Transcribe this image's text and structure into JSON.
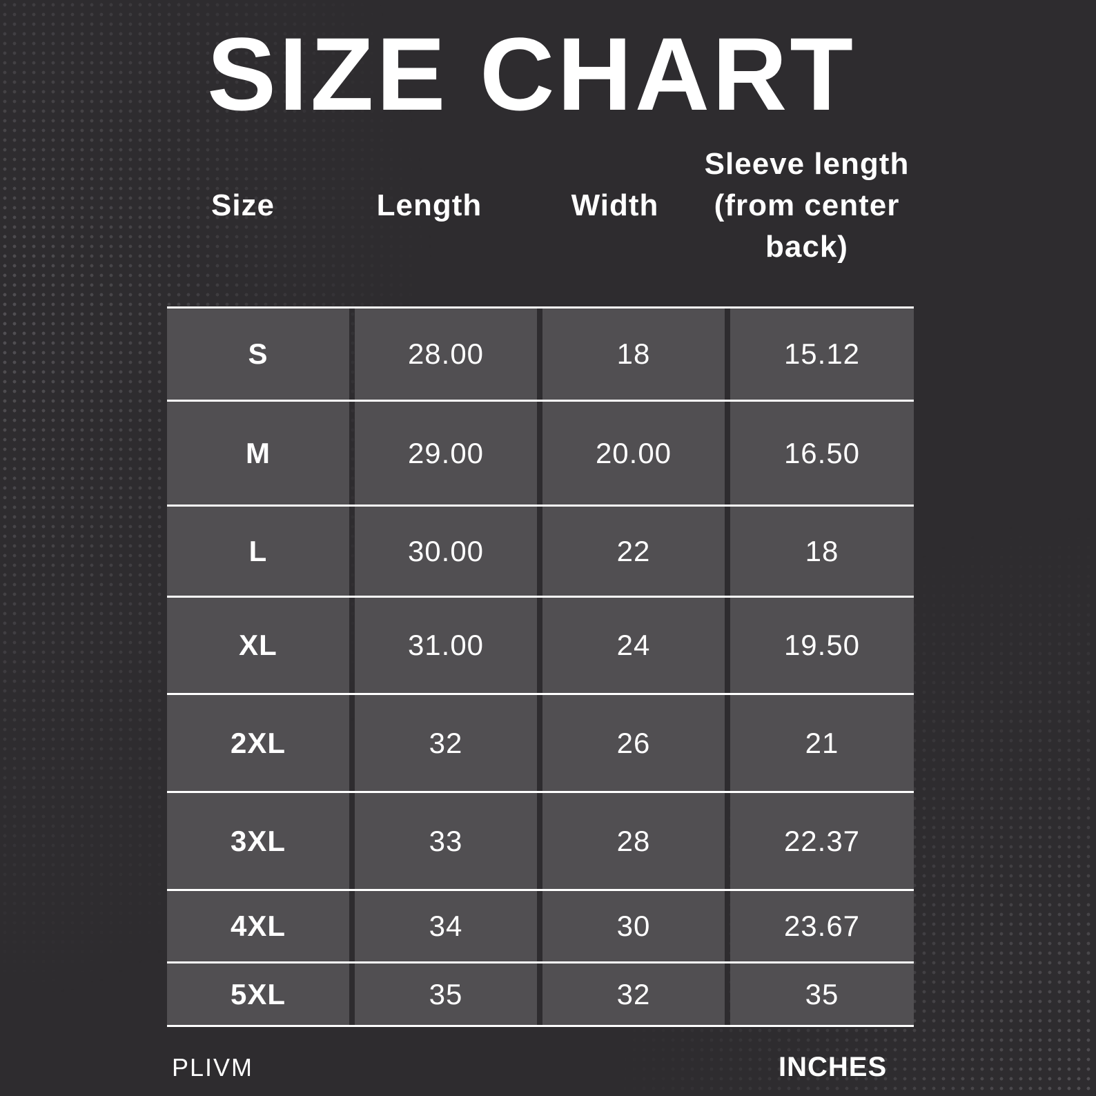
{
  "title": "SIZE CHART",
  "headers": [
    "Size",
    "Length",
    "Width",
    "Sleeve length (from center back)"
  ],
  "rows": [
    {
      "size": "S",
      "length": "28.00",
      "width": "18",
      "sleeve": "15.12"
    },
    {
      "size": "M",
      "length": "29.00",
      "width": "20.00",
      "sleeve": "16.50"
    },
    {
      "size": "L",
      "length": "30.00",
      "width": "22",
      "sleeve": "18"
    },
    {
      "size": "XL",
      "length": "31.00",
      "width": "24",
      "sleeve": "19.50"
    },
    {
      "size": "2XL",
      "length": "32",
      "width": "26",
      "sleeve": "21"
    },
    {
      "size": "3XL",
      "length": "33",
      "width": "28",
      "sleeve": "22.37"
    },
    {
      "size": "4XL",
      "length": "34",
      "width": "30",
      "sleeve": "23.67"
    },
    {
      "size": "5XL",
      "length": "35",
      "width": "32",
      "sleeve": "35"
    }
  ],
  "brand": "PLIVM",
  "unit": "INCHES",
  "colors": {
    "background": "#2e2c2f",
    "cell": "#514f52",
    "text": "#ffffff"
  }
}
